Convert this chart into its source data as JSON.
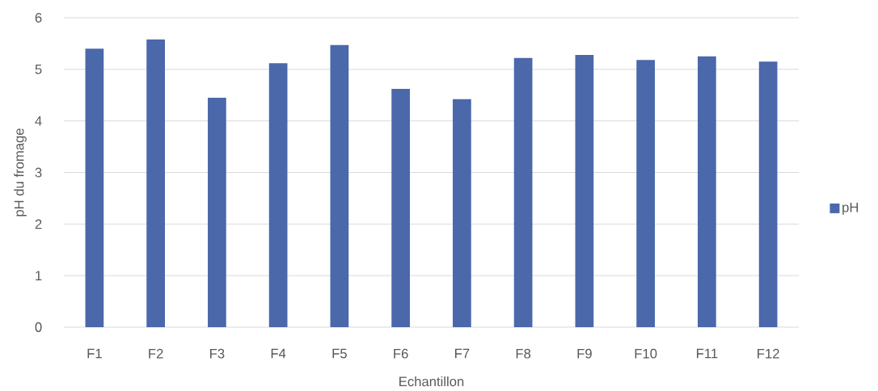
{
  "chart_data": {
    "type": "bar",
    "xlabel": "Echantillon",
    "ylabel": "pH du fromage",
    "categories": [
      "F1",
      "F2",
      "F3",
      "F4",
      "F5",
      "F6",
      "F7",
      "F8",
      "F9",
      "F10",
      "F11",
      "F12"
    ],
    "series": [
      {
        "name": "pH",
        "color": "#4a68aa",
        "values": [
          5.4,
          5.58,
          4.45,
          5.12,
          5.47,
          4.62,
          4.42,
          5.22,
          5.28,
          5.18,
          5.25,
          5.15
        ]
      }
    ],
    "ylim": [
      0,
      6
    ],
    "yticks": [
      0,
      1,
      2,
      3,
      4,
      5,
      6
    ],
    "grid": "y",
    "legend": "right"
  }
}
